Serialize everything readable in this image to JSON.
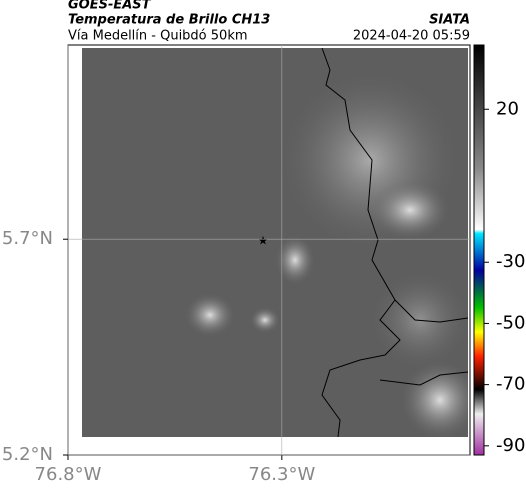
{
  "header": {
    "satellite": "GOES-EAST",
    "product": "Temperatura de Brillo CH13",
    "agency": "SIATA",
    "route": "Vía Medellín - Quibdó 50km",
    "timestamp": "2024-04-20 05:59"
  },
  "map": {
    "xlim": [
      -76.8,
      -75.86
    ],
    "ylim": [
      5.2,
      6.15
    ],
    "xticks": [
      {
        "value": -76.8,
        "label": "76.8°W"
      },
      {
        "value": -76.3,
        "label": "76.3°W"
      }
    ],
    "yticks": [
      {
        "value": 5.2,
        "label": "5.2°N"
      },
      {
        "value": 5.7,
        "label": "5.7°N"
      }
    ],
    "grid": true
  },
  "colorbar": {
    "range": [
      -93,
      41
    ],
    "ticks": [
      20,
      -30,
      -50,
      -70,
      -90
    ]
  }
}
